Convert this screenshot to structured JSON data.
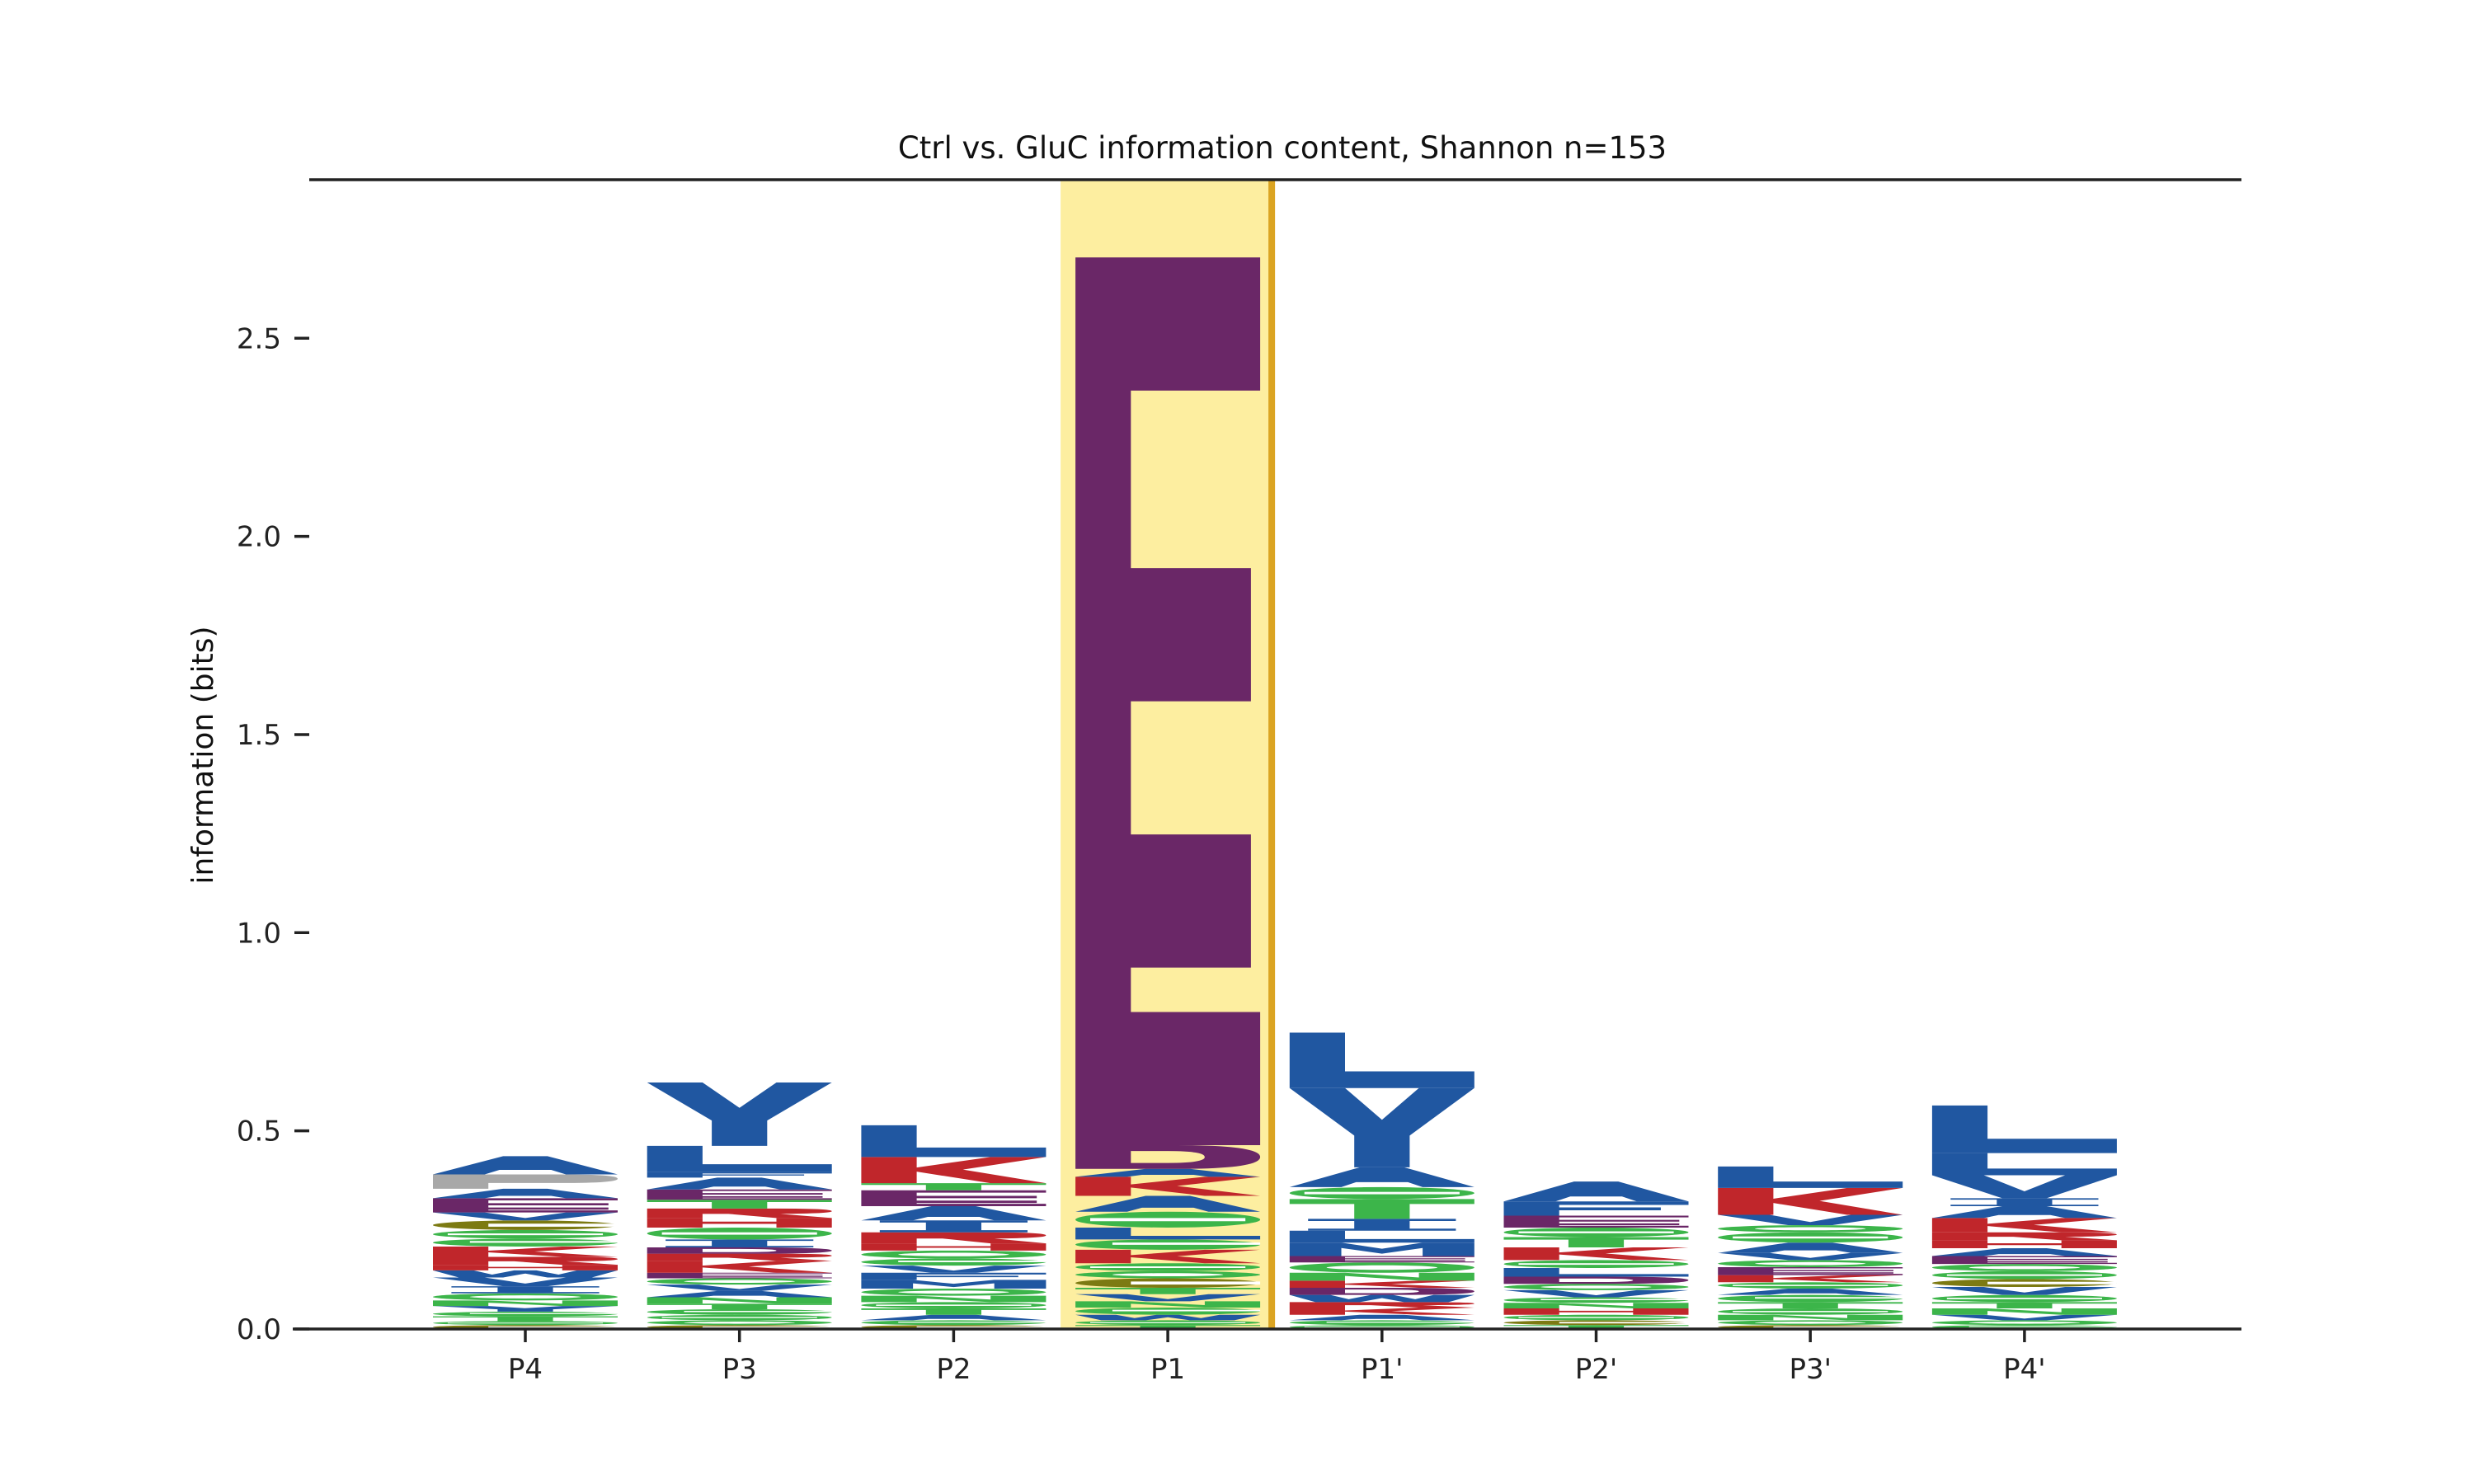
{
  "chart_data": {
    "type": "sequence-logo",
    "title": "Ctrl vs. GluC information content, Shannon n=153",
    "ylabel": "information (bits)",
    "xlabel": "",
    "ylim": [
      0,
      2.9
    ],
    "yticks": [
      0.0,
      0.5,
      1.0,
      1.5,
      2.0,
      2.5
    ],
    "grid": false,
    "positions": [
      "P4",
      "P3",
      "P2",
      "P1",
      "P1'",
      "P2'",
      "P3'",
      "P4'"
    ],
    "highlight_position": "P1",
    "colors": {
      "acidic": "#6a2767",
      "hydrophobic": "#2057a1",
      "basic": "#c0262b",
      "polar": "#3cb54a",
      "special": "#7c7a12",
      "other": "#a8a8a8",
      "highlight_fill": "#fdeea0",
      "highlight_edge": "#dba422",
      "axis": "#222222"
    },
    "letters": {
      "P4": [
        [
          "C",
          0.01
        ],
        [
          "S",
          0.01
        ],
        [
          "T",
          0.012
        ],
        [
          "G",
          0.012
        ],
        [
          "Y",
          0.014
        ],
        [
          "N",
          0.014
        ],
        [
          "Q",
          0.018
        ],
        [
          "I",
          0.018
        ],
        [
          "V",
          0.022
        ],
        [
          "W",
          0.018
        ],
        [
          "H",
          0.014
        ],
        [
          "R",
          0.02
        ],
        [
          "K",
          0.026
        ],
        [
          "G",
          0.02
        ],
        [
          "S",
          0.022
        ],
        [
          "C",
          0.024
        ],
        [
          "V",
          0.02
        ],
        [
          "E",
          0.036
        ],
        [
          "A",
          0.024
        ],
        [
          "P",
          0.036
        ],
        [
          "A",
          0.046
        ]
      ],
      "P3": [
        [
          "C",
          0.01
        ],
        [
          "Q",
          0.012
        ],
        [
          "S",
          0.014
        ],
        [
          "G",
          0.014
        ],
        [
          "T",
          0.014
        ],
        [
          "N",
          0.016
        ],
        [
          "A",
          0.016
        ],
        [
          "V",
          0.016
        ],
        [
          "Q",
          0.016
        ],
        [
          "E",
          0.014
        ],
        [
          "K",
          0.03
        ],
        [
          "R",
          0.018
        ],
        [
          "D",
          0.016
        ],
        [
          "I",
          0.02
        ],
        [
          "S",
          0.03
        ],
        [
          "H",
          0.024
        ],
        [
          "R",
          0.024
        ],
        [
          "T",
          0.022
        ],
        [
          "E",
          0.026
        ],
        [
          "A",
          0.03
        ],
        [
          "F",
          0.014
        ],
        [
          "L",
          0.066
        ],
        [
          "Y",
          0.16
        ]
      ],
      "P2": [
        [
          "C",
          0.01
        ],
        [
          "G",
          0.012
        ],
        [
          "A",
          0.014
        ],
        [
          "T",
          0.016
        ],
        [
          "S",
          0.016
        ],
        [
          "N",
          0.016
        ],
        [
          "Q",
          0.018
        ],
        [
          "M",
          0.022
        ],
        [
          "F",
          0.018
        ],
        [
          "V",
          0.018
        ],
        [
          "G",
          0.018
        ],
        [
          "Q",
          0.02
        ],
        [
          "H",
          0.018
        ],
        [
          "R",
          0.028
        ],
        [
          "I",
          0.03
        ],
        [
          "A",
          0.036
        ],
        [
          "E",
          0.04
        ],
        [
          "T",
          0.018
        ],
        [
          "K",
          0.066
        ],
        [
          "L",
          0.08
        ]
      ],
      "P1": [
        [
          "T",
          0.01
        ],
        [
          "S",
          0.012
        ],
        [
          "W",
          0.014
        ],
        [
          "G",
          0.018
        ],
        [
          "N",
          0.016
        ],
        [
          "V",
          0.018
        ],
        [
          "T",
          0.016
        ],
        [
          "C",
          0.024
        ],
        [
          "Q",
          0.018
        ],
        [
          "S",
          0.02
        ],
        [
          "K",
          0.034
        ],
        [
          "G",
          0.026
        ],
        [
          "L",
          0.03
        ],
        [
          "S",
          0.04
        ],
        [
          "A",
          0.04
        ],
        [
          "K",
          0.048
        ],
        [
          "A",
          0.02
        ],
        [
          "D",
          0.06
        ],
        [
          "E",
          2.24
        ]
      ],
      "P1'": [
        [
          "S",
          0.01
        ],
        [
          "G",
          0.012
        ],
        [
          "A",
          0.014
        ],
        [
          "K",
          0.018
        ],
        [
          "R",
          0.014
        ],
        [
          "W",
          0.018
        ],
        [
          "D",
          0.018
        ],
        [
          "K",
          0.018
        ],
        [
          "N",
          0.02
        ],
        [
          "Q",
          0.026
        ],
        [
          "E",
          0.016
        ],
        [
          "M",
          0.034
        ],
        [
          "L",
          0.03
        ],
        [
          "I",
          0.03
        ],
        [
          "T",
          0.05
        ],
        [
          "S",
          0.03
        ],
        [
          "A",
          0.05
        ],
        [
          "Y",
          0.2
        ],
        [
          "L",
          0.14
        ]
      ],
      "P2'": [
        [
          "T",
          0.01
        ],
        [
          "C",
          0.012
        ],
        [
          "S",
          0.014
        ],
        [
          "H",
          0.016
        ],
        [
          "N",
          0.014
        ],
        [
          "G",
          0.014
        ],
        [
          "V",
          0.018
        ],
        [
          "Q",
          0.016
        ],
        [
          "D",
          0.018
        ],
        [
          "L",
          0.022
        ],
        [
          "S",
          0.02
        ],
        [
          "K",
          0.032
        ],
        [
          "T",
          0.026
        ],
        [
          "S",
          0.024
        ],
        [
          "E",
          0.03
        ],
        [
          "F",
          0.036
        ],
        [
          "A",
          0.05
        ]
      ],
      "P3'": [
        [
          "C",
          0.01
        ],
        [
          "Q",
          0.012
        ],
        [
          "N",
          0.014
        ],
        [
          "S",
          0.016
        ],
        [
          "T",
          0.016
        ],
        [
          "G",
          0.018
        ],
        [
          "A",
          0.016
        ],
        [
          "S",
          0.016
        ],
        [
          "K",
          0.018
        ],
        [
          "E",
          0.02
        ],
        [
          "Q",
          0.018
        ],
        [
          "V",
          0.018
        ],
        [
          "A",
          0.026
        ],
        [
          "S",
          0.026
        ],
        [
          "Q",
          0.018
        ],
        [
          "V",
          0.026
        ],
        [
          "K",
          0.068
        ],
        [
          "L",
          0.054
        ]
      ],
      "P4'": [
        [
          "G",
          0.01
        ],
        [
          "Q",
          0.012
        ],
        [
          "V",
          0.014
        ],
        [
          "N",
          0.016
        ],
        [
          "T",
          0.016
        ],
        [
          "S",
          0.018
        ],
        [
          "V",
          0.02
        ],
        [
          "C",
          0.02
        ],
        [
          "S",
          0.02
        ],
        [
          "Q",
          0.018
        ],
        [
          "E",
          0.02
        ],
        [
          "A",
          0.02
        ],
        [
          "H",
          0.02
        ],
        [
          "R",
          0.02
        ],
        [
          "K",
          0.036
        ],
        [
          "A",
          0.03
        ],
        [
          "I",
          0.02
        ],
        [
          "V",
          0.058
        ],
        [
          "L",
          0.056
        ],
        [
          "L",
          0.12
        ]
      ]
    }
  }
}
